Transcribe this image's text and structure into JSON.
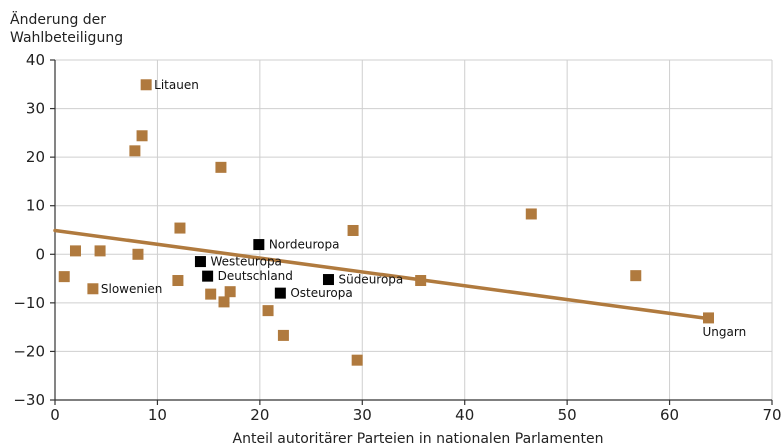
{
  "chart_data": {
    "type": "scatter",
    "title": "",
    "ylabel": [
      "Änderung der",
      "Wahlbeteiligung"
    ],
    "xlabel": "Anteil autoritärer Parteien in nationalen Parlamenten",
    "xlim": [
      0,
      70
    ],
    "ylim": [
      -30,
      40
    ],
    "xticks": [
      0,
      10,
      20,
      30,
      40,
      50,
      60,
      70
    ],
    "yticks": [
      -30,
      -20,
      -10,
      0,
      10,
      20,
      30,
      40
    ],
    "ytick_labels": [
      "−30",
      "−20",
      "−10",
      "0",
      "10",
      "20",
      "30",
      "40"
    ],
    "grid": true,
    "colors": {
      "country": "#b07a3e",
      "region": "#000000",
      "trend": "#b07a3e"
    },
    "series": [
      {
        "kind": "country",
        "points": [
          {
            "x": 0.9,
            "y": -4.6,
            "label": ""
          },
          {
            "x": 2.0,
            "y": 0.7,
            "label": ""
          },
          {
            "x": 4.4,
            "y": 0.7,
            "label": ""
          },
          {
            "x": 3.7,
            "y": -7.1,
            "label": "Slowenien"
          },
          {
            "x": 7.8,
            "y": 21.3,
            "label": ""
          },
          {
            "x": 8.5,
            "y": 24.4,
            "label": ""
          },
          {
            "x": 8.1,
            "y": 0.0,
            "label": ""
          },
          {
            "x": 8.9,
            "y": 34.9,
            "label": "Litauen"
          },
          {
            "x": 12.0,
            "y": -5.4,
            "label": ""
          },
          {
            "x": 12.2,
            "y": 5.4,
            "label": ""
          },
          {
            "x": 15.2,
            "y": -8.2,
            "label": ""
          },
          {
            "x": 16.2,
            "y": 17.9,
            "label": ""
          },
          {
            "x": 16.5,
            "y": -9.8,
            "label": ""
          },
          {
            "x": 17.1,
            "y": -7.7,
            "label": ""
          },
          {
            "x": 20.8,
            "y": -11.6,
            "label": ""
          },
          {
            "x": 22.3,
            "y": -16.7,
            "label": ""
          },
          {
            "x": 29.1,
            "y": 4.9,
            "label": ""
          },
          {
            "x": 29.5,
            "y": -21.8,
            "label": ""
          },
          {
            "x": 35.7,
            "y": -5.4,
            "label": ""
          },
          {
            "x": 46.5,
            "y": 8.3,
            "label": ""
          },
          {
            "x": 56.7,
            "y": -4.4,
            "label": ""
          },
          {
            "x": 63.8,
            "y": -13.1,
            "label": "Ungarn"
          }
        ]
      },
      {
        "kind": "region",
        "points": [
          {
            "x": 19.9,
            "y": 2.0,
            "label": "Nordeuropa"
          },
          {
            "x": 14.2,
            "y": -1.5,
            "label": "Westeuropa"
          },
          {
            "x": 14.9,
            "y": -4.5,
            "label": "Deutschland"
          },
          {
            "x": 26.7,
            "y": -5.2,
            "label": "Südeuropa"
          },
          {
            "x": 22.0,
            "y": -8.0,
            "label": "Osteuropa"
          }
        ]
      }
    ],
    "trendline": {
      "x": [
        0,
        64
      ],
      "y": [
        4.9,
        -13.3
      ]
    }
  }
}
